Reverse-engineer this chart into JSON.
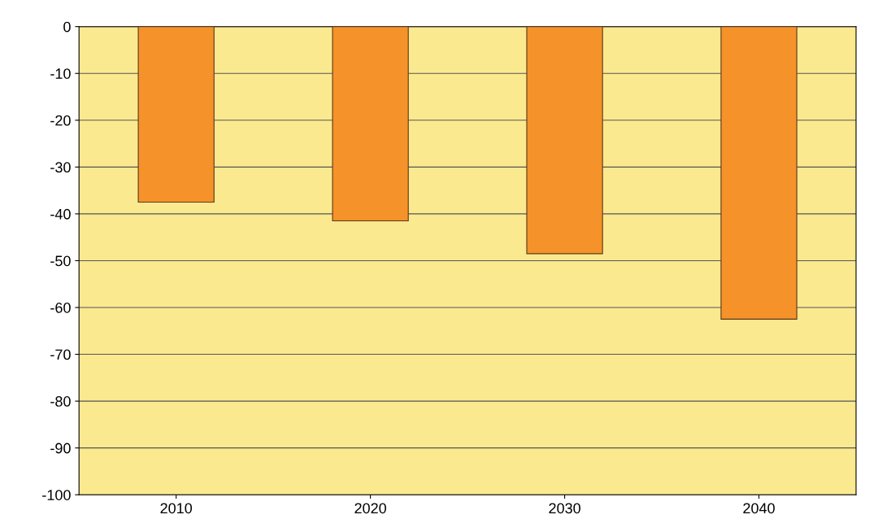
{
  "chart_data": {
    "type": "bar",
    "categories": [
      "2010",
      "2020",
      "2030",
      "2040"
    ],
    "values": [
      -37.5,
      -41.5,
      -48.5,
      -62.5
    ],
    "color": "#f5922a",
    "ylim": [
      -100,
      0
    ],
    "yticks": [
      -100,
      -90,
      -80,
      -70,
      -60,
      -50,
      -40,
      -30,
      -20,
      -10,
      0
    ],
    "grid": "y"
  }
}
